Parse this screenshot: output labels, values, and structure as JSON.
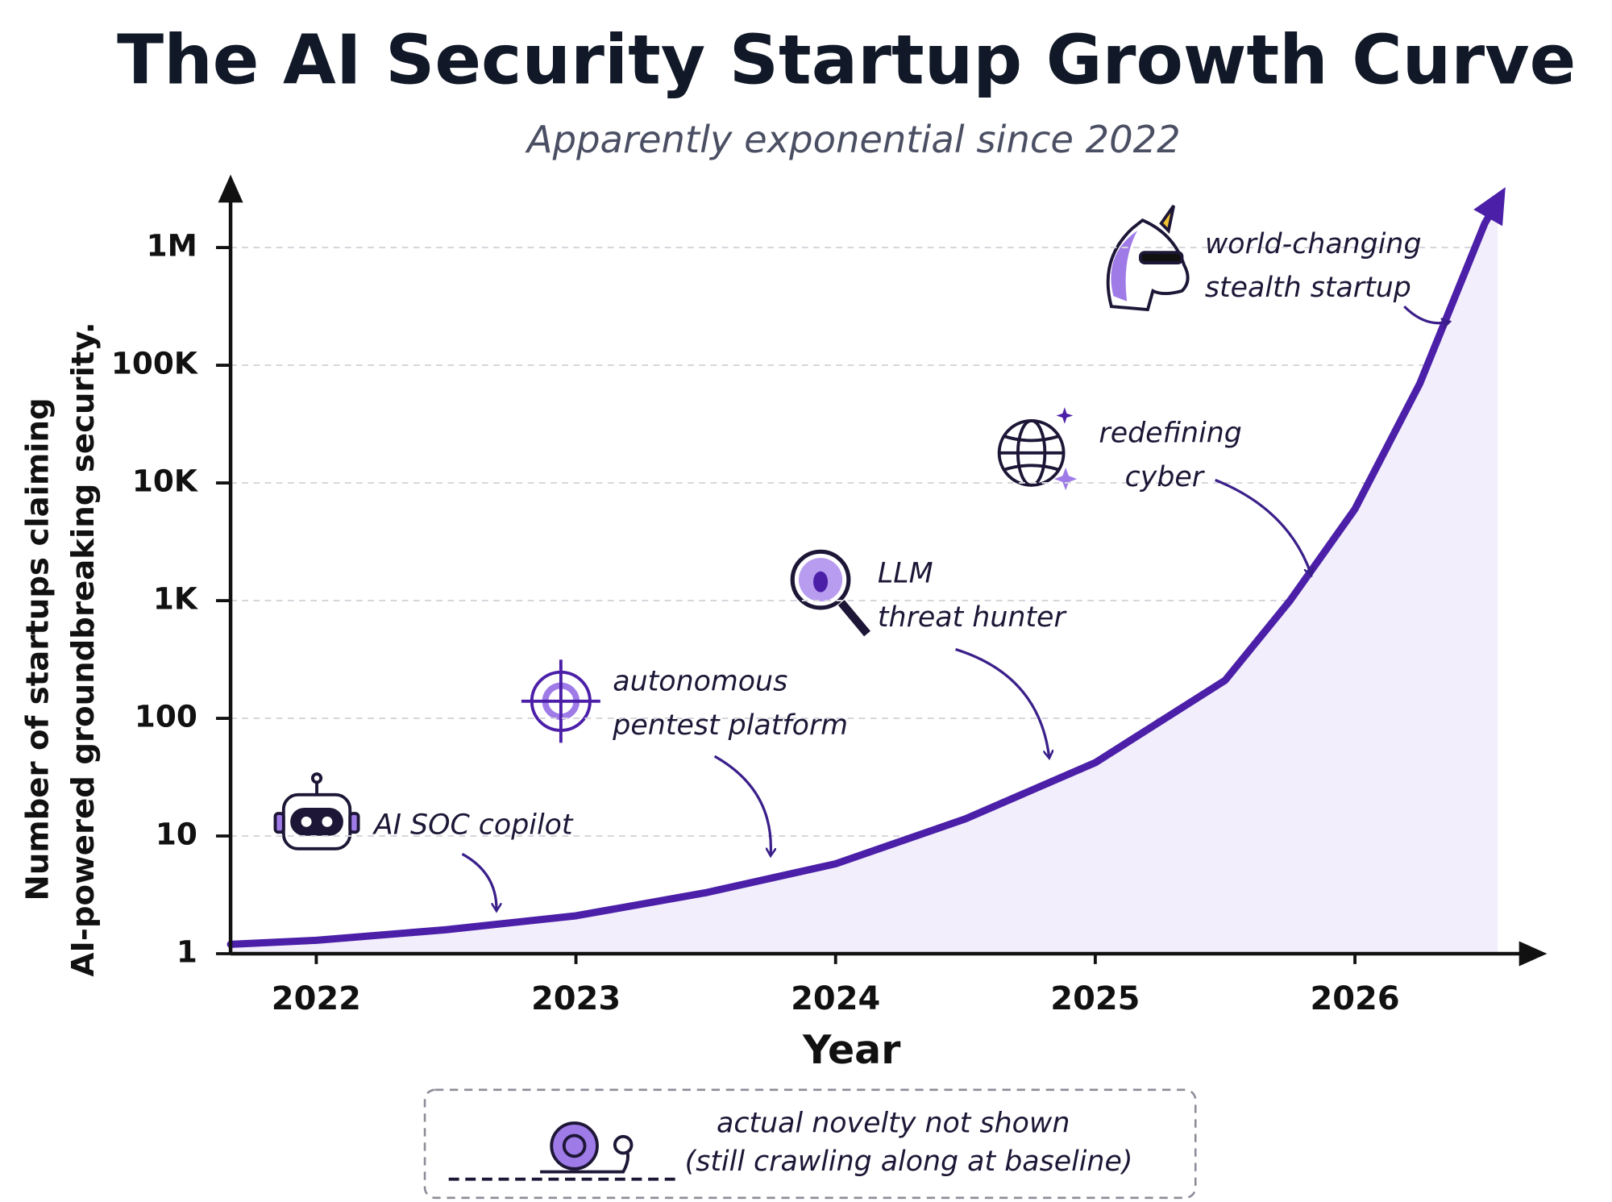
{
  "chart_data": {
    "type": "line",
    "title": "The AI Security Startup Growth Curve",
    "subtitle": "Apparently exponential since 2022",
    "x_label": "Year",
    "y_label": [
      "Number of startups claiming",
      "AI-powered groundbreaking security."
    ],
    "x": [
      2021.67,
      2022,
      2022.5,
      2023,
      2023.5,
      2024,
      2024.5,
      2025,
      2025.5,
      2025.75,
      2026,
      2026.25,
      2026.5,
      2026.55
    ],
    "series": [
      {
        "color": "#4b1fa8",
        "values": [
          1.2,
          1.3,
          1.6,
          2.1,
          3.3,
          5.8,
          14,
          42,
          210,
          1000,
          6000,
          70000,
          1600000,
          2500000
        ]
      }
    ],
    "xlim": [
      2021.67,
      2026.72
    ],
    "xticks": [
      2022,
      2023,
      2024,
      2025,
      2026
    ],
    "ylim": [
      1,
      3500000
    ],
    "yticks": [
      1,
      10,
      100,
      {
        "value": 1000,
        "label": "1K"
      },
      {
        "value": 10000,
        "label": "10K"
      },
      {
        "value": 100000,
        "label": "100K"
      },
      {
        "value": 1000000,
        "label": "1M"
      }
    ],
    "log_scale": true,
    "grid": true,
    "annotations": [
      {
        "text": [
          "AI SOC copilot"
        ]
      },
      {
        "text": [
          "autonomous",
          "pentest platform"
        ]
      },
      {
        "text": [
          "LLM",
          "threat hunter"
        ]
      },
      {
        "text": [
          "redefining",
          "cyber"
        ]
      },
      {
        "text": [
          "world-changing",
          "stealth startup"
        ]
      }
    ],
    "footnote": [
      "actual novelty not shown",
      "(still crawling along at baseline)"
    ]
  }
}
